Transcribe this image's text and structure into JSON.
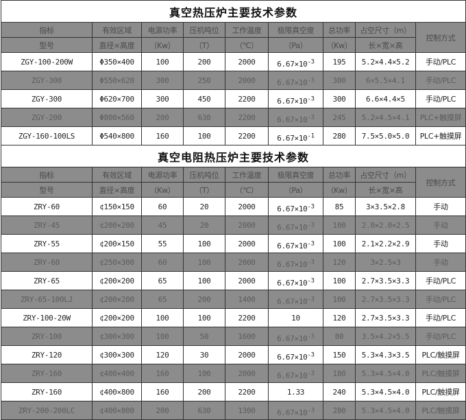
{
  "tables": [
    {
      "title": "真空热压炉主要技术参数",
      "header": {
        "row1": [
          "指标",
          "有效区域",
          "电源功率",
          "压机吨位",
          "工作温度",
          "极限真空度",
          "总功率",
          "占空尺寸（m）",
          "控制方式"
        ],
        "row2": [
          "型号",
          "直径×高度",
          "（Kw）",
          "（T）",
          "（℃）",
          "（Pa）",
          "（Kw）",
          "长×宽×高"
        ]
      },
      "rows": [
        {
          "model": "ZGY-100-200W",
          "zone": "Φ350×400",
          "power": "100",
          "tonnage": "200",
          "temp": "2000",
          "vac_base": "6.67×10",
          "vac_exp": "-3",
          "total": "195",
          "size": "5.2×4.4×5.2",
          "control": "手动/PLC"
        },
        {
          "model": "ZGY-300",
          "zone": "Φ550×620",
          "power": "300",
          "tonnage": "250",
          "temp": "2000",
          "vac_base": "6.67×10",
          "vac_exp": "-3",
          "total": "300",
          "size": "6×5.5×4.1",
          "control": "手动/PLC"
        },
        {
          "model": "ZGY-300",
          "zone": "Φ620×700",
          "power": "300",
          "tonnage": "450",
          "temp": "2200",
          "vac_base": "6.67×10",
          "vac_exp": "-3",
          "total": "300",
          "size": "6.6×4.4×5",
          "control": "手动/PLC"
        },
        {
          "model": "ZGY-200",
          "zone": "Φ800×560",
          "power": "200",
          "tonnage": "630",
          "temp": "2200",
          "vac_base": "6.67×10",
          "vac_exp": "-3",
          "total": "245",
          "size": "5.2×4.5×4.1",
          "control": "PLC+触摸屏"
        },
        {
          "model": "ZGY-160-100LS",
          "zone": "Φ540×800",
          "power": "160",
          "tonnage": "100",
          "temp": "2200",
          "vac_base": "6.67×10",
          "vac_exp": "-1",
          "total": "280",
          "size": "7.5×5.0×5.0",
          "control": "PLC+触摸屏"
        }
      ]
    },
    {
      "title": "真空电阻热压炉主要技术参数",
      "header": {
        "row1": [
          "指标",
          "有效区域",
          "电源功率",
          "压机吨位",
          "工作温度",
          "极限真空度",
          "总功率",
          "占空尺寸（m）",
          "控制方式"
        ],
        "row2": [
          "型号",
          "直径×高度",
          "（Kw）",
          "（T）",
          "（℃）",
          "（Pa）",
          "（Kw）",
          "长×宽×高"
        ]
      },
      "rows": [
        {
          "model": "ZRY-60",
          "zone": "¢150×150",
          "power": "60",
          "tonnage": "20",
          "temp": "2000",
          "vac_base": "6.67×10",
          "vac_exp": "-3",
          "total": "85",
          "size": "3×3.5×2.8",
          "control": "手动"
        },
        {
          "model": "ZRY-45",
          "zone": "¢200×200",
          "power": "45",
          "tonnage": "20",
          "temp": "2000",
          "vac_base": "6.67×10",
          "vac_exp": "-3",
          "total": "100",
          "size": "2.0×2.0×2.5",
          "control": "手动"
        },
        {
          "model": "ZRY-55",
          "zone": "¢200×150",
          "power": "55",
          "tonnage": "100",
          "temp": "2000",
          "vac_base": "6.67×10",
          "vac_exp": "-3",
          "total": "100",
          "size": "2.1×2.2×2.9",
          "control": "手动"
        },
        {
          "model": "ZRY-60",
          "zone": "¢250×300",
          "power": "60",
          "tonnage": "100",
          "temp": "2000",
          "vac_base": "6.67×10",
          "vac_exp": "-3",
          "total": "120",
          "size": "3×2.5×3",
          "control": "手动"
        },
        {
          "model": "ZRY-65",
          "zone": "¢200×200",
          "power": "65",
          "tonnage": "100",
          "temp": "2000",
          "vac_base": "6.67×10",
          "vac_exp": "-3",
          "total": "100",
          "size": "2.7×3.5×3.3",
          "control": "手动/PLC"
        },
        {
          "model": "ZRY-65-100LJ",
          "zone": "¢200×200",
          "power": "65",
          "tonnage": "200",
          "temp": "1400",
          "vac_base": "6.67×10",
          "vac_exp": "-3",
          "total": "100",
          "size": "2.7×3.5×3.3",
          "control": "手动/PLC"
        },
        {
          "model": "ZRY-100-20W",
          "zone": "¢200×200",
          "power": "100",
          "tonnage": "100",
          "temp": "2200",
          "vac_base": "10",
          "vac_exp": "",
          "total": "120",
          "size": "2.7×3.5×3.3",
          "control": "手动/PLC"
        },
        {
          "model": "ZRY-100",
          "zone": "¢300×300",
          "power": "100",
          "tonnage": "50",
          "temp": "1600",
          "vac_base": "6.67×10",
          "vac_exp": "-3",
          "total": "80",
          "size": "3.5×4.2×5.5",
          "control": "手动/PLC"
        },
        {
          "model": "ZRY-120",
          "zone": "¢300×300",
          "power": "120",
          "tonnage": "30",
          "temp": "2000",
          "vac_base": "6.67×10",
          "vac_exp": "-3",
          "total": "150",
          "size": "5.3×4.3×3.5",
          "control": "PLC/触摸屏"
        },
        {
          "model": "ZRY-160",
          "zone": "¢400×400",
          "power": "160",
          "tonnage": "100",
          "temp": "2000",
          "vac_base": "6.67×10",
          "vac_exp": "-3",
          "total": "180",
          "size": "5.3×4.5×4.0",
          "control": "PLC/触摸屏"
        },
        {
          "model": "ZRY-160",
          "zone": "¢400×800",
          "power": "160",
          "tonnage": "200",
          "temp": "2200",
          "vac_base": "1.33",
          "vac_exp": "",
          "total": "240",
          "size": "5.3×4.5×4.0",
          "control": "PLC/触摸屏"
        },
        {
          "model": "ZRY-200-200LC",
          "zone": "¢400×800",
          "power": "200",
          "tonnage": "630",
          "temp": "1300",
          "vac_base": "6.67×10",
          "vac_exp": "-3",
          "total": "280",
          "size": "5.3×4.5×4.0",
          "control": "PLC/触摸屏"
        }
      ]
    }
  ],
  "colors": {
    "header_bg": "#8c8c8c",
    "alt_row_bg": "#8c8c8c",
    "row_bg": "#ffffff"
  }
}
